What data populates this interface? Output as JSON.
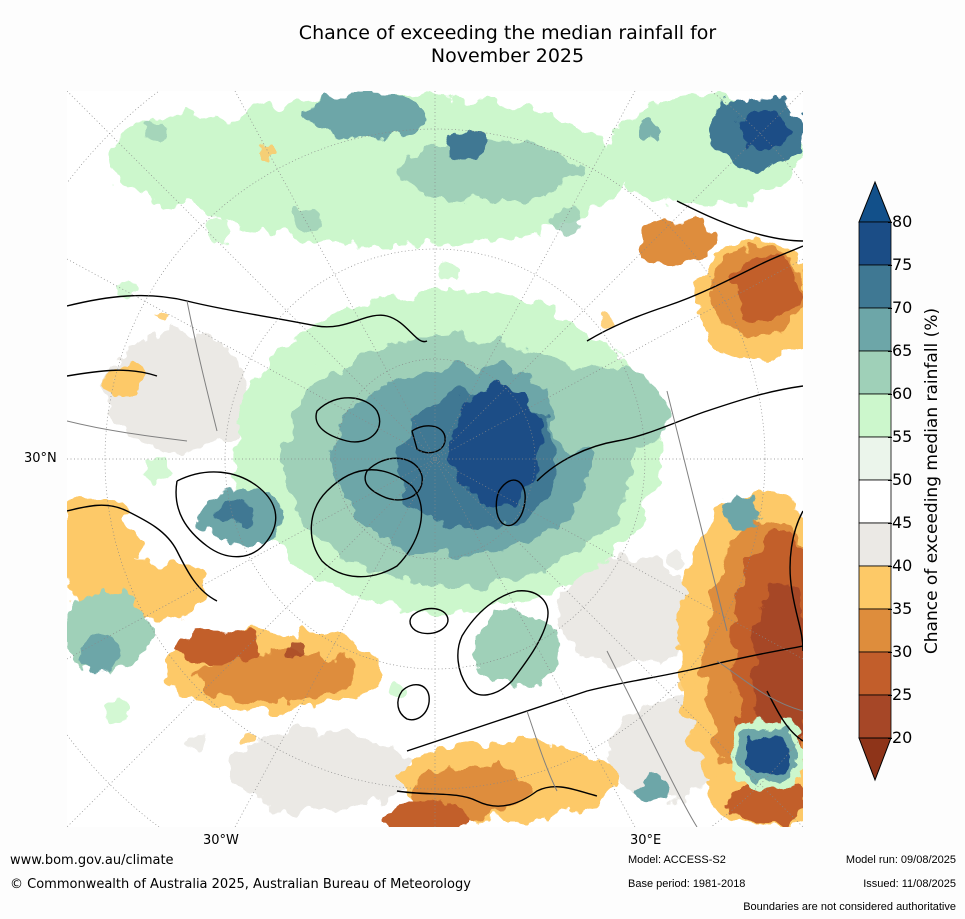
{
  "title": {
    "line1": "Chance of exceeding the median rainfall for",
    "line2": "November 2025"
  },
  "map": {
    "projection": "north-polar-stereographic",
    "latitude_label": "30°N",
    "longitude_labels": [
      "30°W",
      "30°E"
    ]
  },
  "colorbar": {
    "label": "Chance of exceeding median rainfall (%)",
    "ticks": [
      "80",
      "75",
      "70",
      "65",
      "60",
      "55",
      "50",
      "45",
      "40",
      "35",
      "30",
      "25",
      "20"
    ],
    "bins": [
      {
        "range": "75-80",
        "color": "#1b4d86"
      },
      {
        "range": "70-75",
        "color": "#3f7893"
      },
      {
        "range": "65-70",
        "color": "#6da6a8"
      },
      {
        "range": "60-65",
        "color": "#9fd0b8"
      },
      {
        "range": "55-60",
        "color": "#ccf7cc"
      },
      {
        "range": "50-55",
        "color": "#ebf5eb"
      },
      {
        "range": "45-50",
        "color": "#ffffff"
      },
      {
        "range": "40-45",
        "color": "#ebe9e5"
      },
      {
        "range": "35-40",
        "color": "#fdc967"
      },
      {
        "range": "30-35",
        "color": "#de8d3c"
      },
      {
        "range": "25-30",
        "color": "#c25e2b"
      },
      {
        "range": "20-25",
        "color": "#a64727"
      }
    ],
    "upper_extension_color": "#12508a",
    "lower_extension_color": "#8e3419"
  },
  "footer": {
    "url": "www.bom.gov.au/climate",
    "copyright": "© Commonwealth of Australia 2025, Australian Bureau of Meteorology",
    "model": "Model: ACCESS-S2",
    "base_period": "Base period: 1981-2018",
    "model_run": "Model run: 09/08/2025",
    "issued": "Issued: 11/08/2025",
    "boundaries_note": "Boundaries are not considered authoritative"
  }
}
